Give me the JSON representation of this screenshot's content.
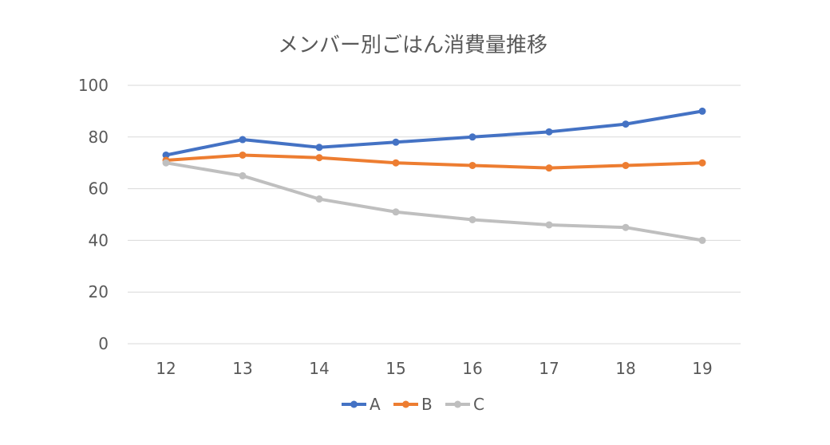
{
  "chart_data": {
    "type": "line",
    "title": "メンバー別ごはん消費量推移",
    "xlabel": "",
    "ylabel": "",
    "x": [
      "12",
      "13",
      "14",
      "15",
      "16",
      "17",
      "18",
      "19"
    ],
    "ylim": [
      0,
      100
    ],
    "yticks": [
      "0",
      "20",
      "40",
      "60",
      "80",
      "100"
    ],
    "grid": true,
    "legend_position": "bottom",
    "series": [
      {
        "name": "A",
        "color": "#4472c4",
        "values": [
          73,
          79,
          76,
          78,
          80,
          82,
          85,
          90
        ]
      },
      {
        "name": "B",
        "color": "#ed7d31",
        "values": [
          71,
          73,
          72,
          70,
          69,
          68,
          69,
          70
        ]
      },
      {
        "name": "C",
        "color": "#bfbfbf",
        "values": [
          70,
          65,
          56,
          51,
          48,
          46,
          45,
          40
        ]
      }
    ]
  }
}
